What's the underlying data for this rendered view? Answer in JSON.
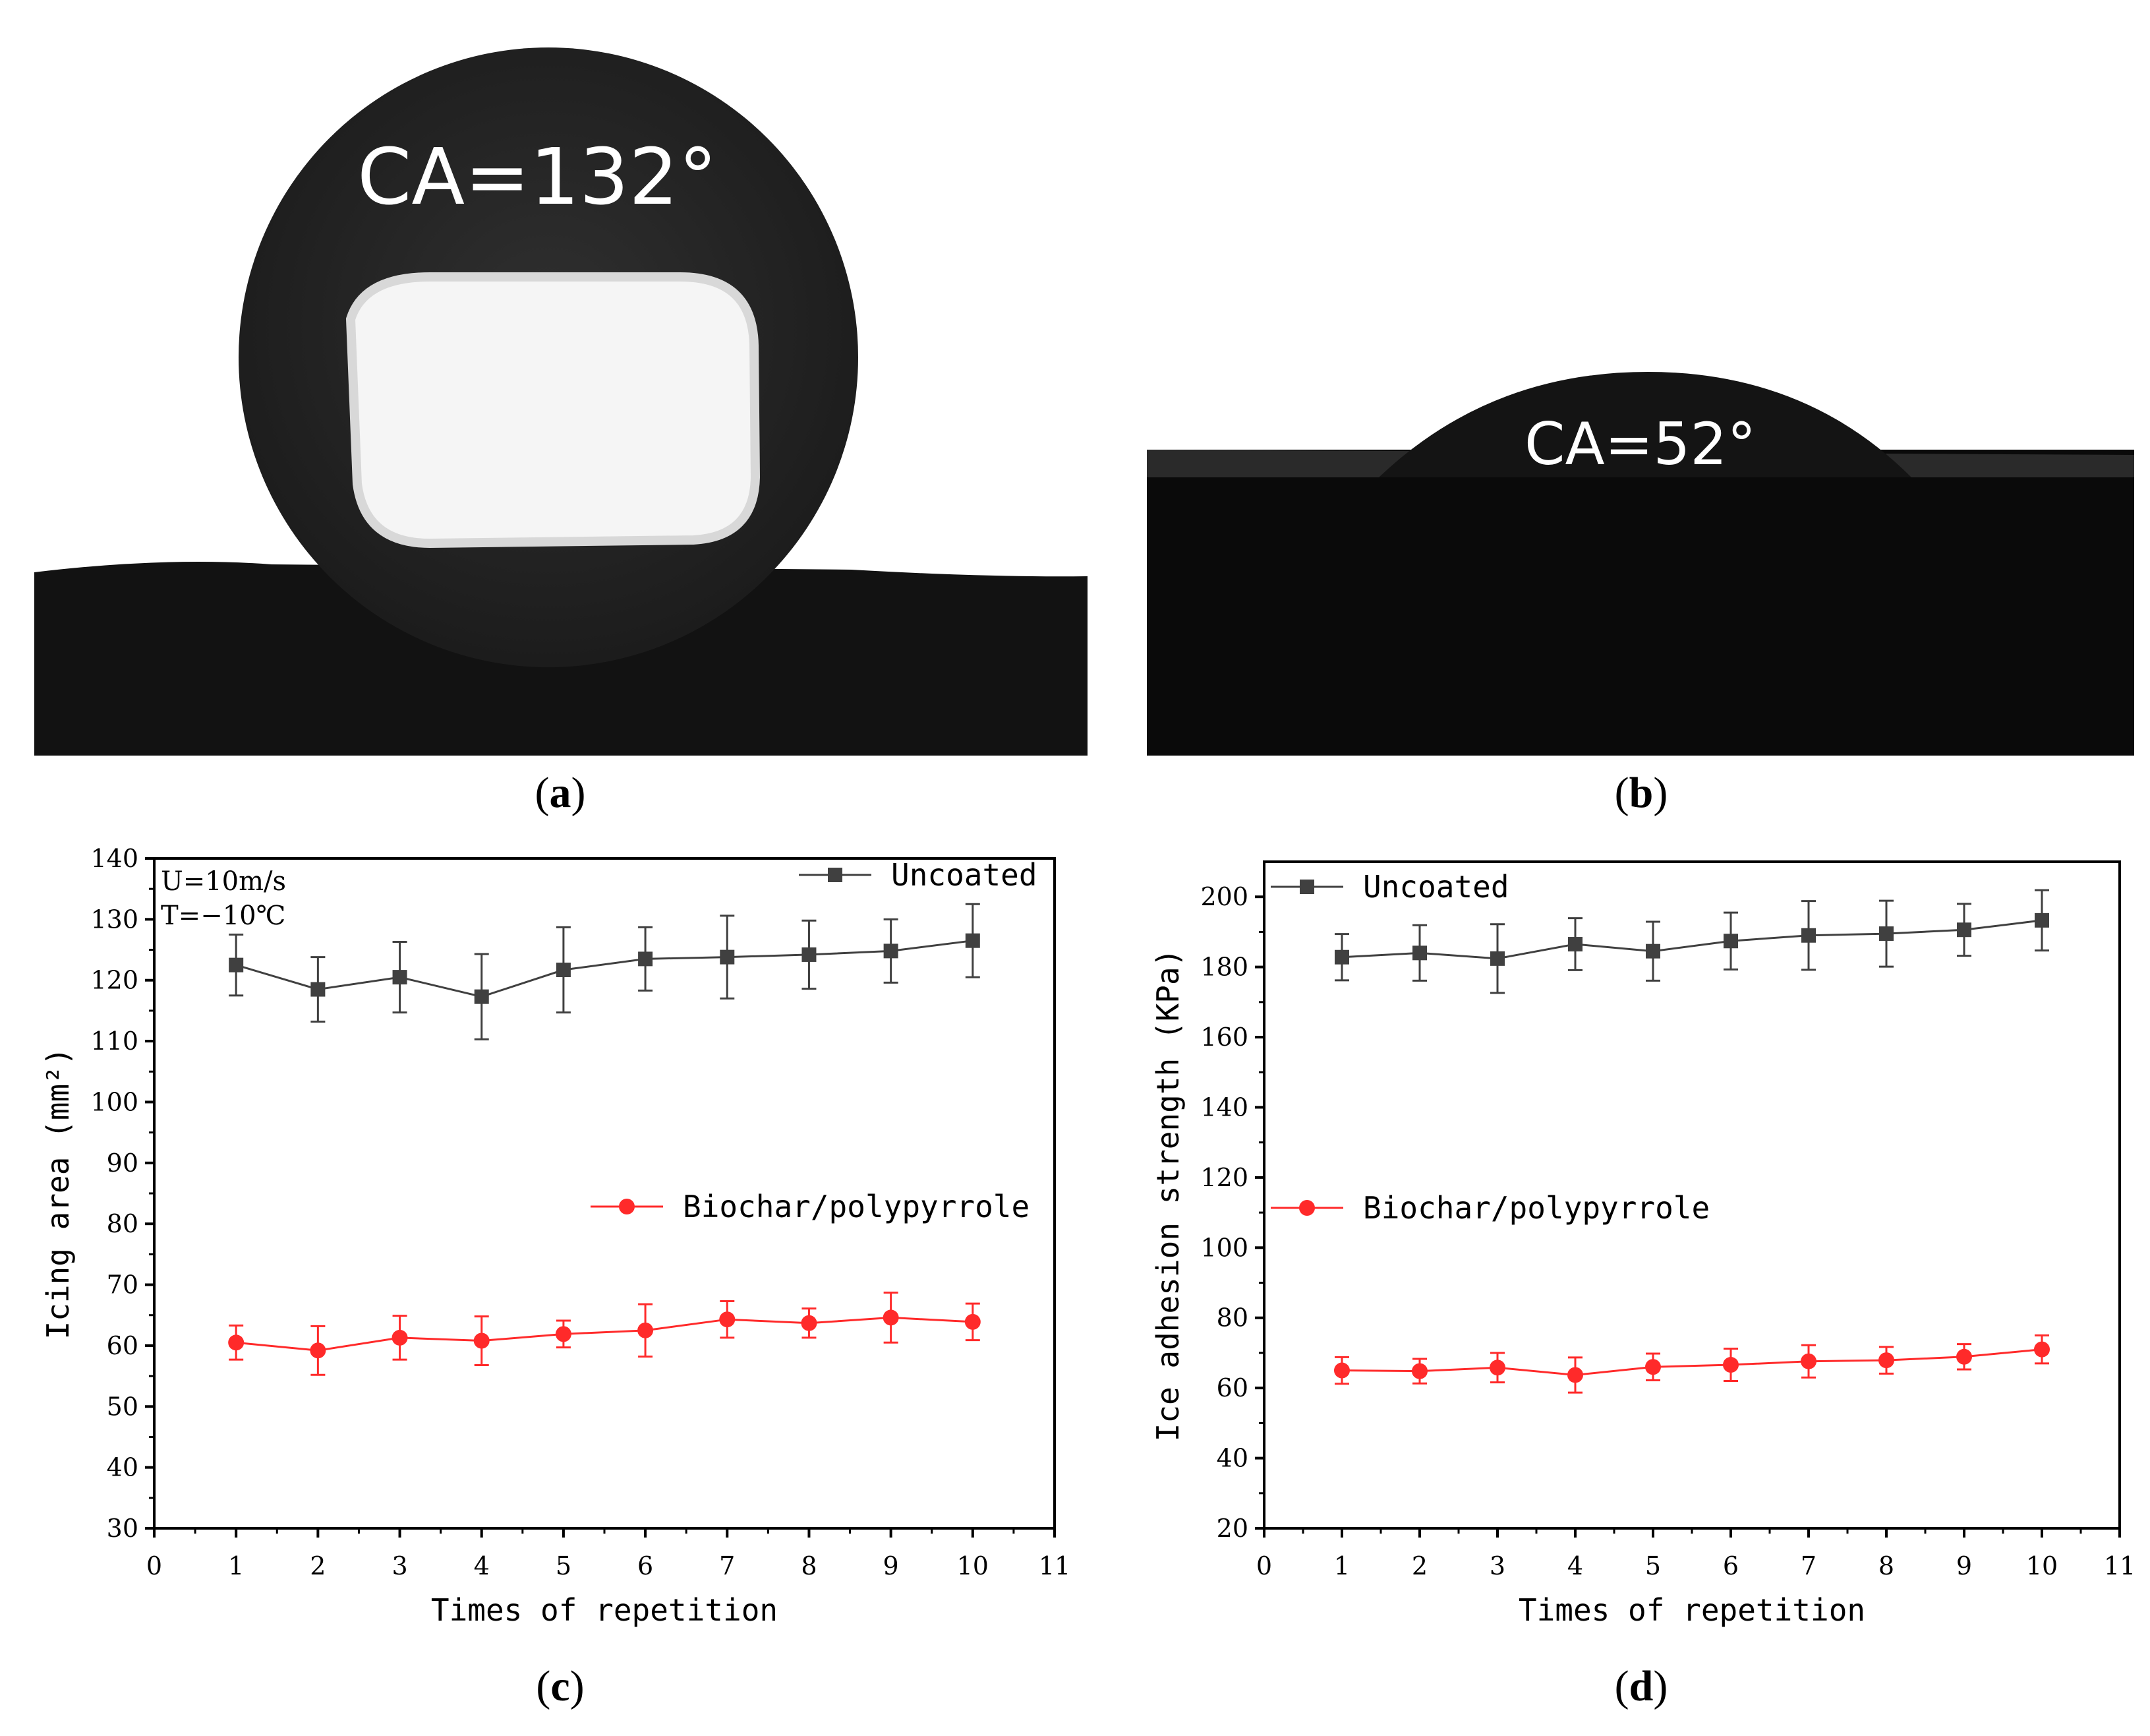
{
  "photos": [
    {
      "id": "a",
      "annotation": "CA=132°",
      "label_open": "(",
      "label_letter": "a",
      "label_close": ")"
    },
    {
      "id": "b",
      "annotation": "CA=52°",
      "label_open": "(",
      "label_letter": "b",
      "label_close": ")"
    }
  ],
  "chart_labels": [
    {
      "open": "(",
      "letter": "c",
      "close": ")"
    },
    {
      "open": "(",
      "letter": "d",
      "close": ")"
    }
  ],
  "chart_data": [
    {
      "type": "line",
      "title": "",
      "xlabel": "Times of repetition",
      "ylabel": "Icing area (mm²)",
      "xlim": [
        0,
        11
      ],
      "ylim": [
        30,
        140
      ],
      "xticks": [
        0,
        1,
        2,
        3,
        4,
        5,
        6,
        7,
        8,
        9,
        10,
        11
      ],
      "yticks": [
        30,
        40,
        50,
        60,
        70,
        80,
        90,
        100,
        110,
        120,
        130,
        140
      ],
      "annotations": [
        "U=10m/s",
        "T=−10℃"
      ],
      "x": [
        1,
        2,
        3,
        4,
        5,
        6,
        7,
        8,
        9,
        10
      ],
      "series": [
        {
          "name": "Uncoated",
          "color": "#404040",
          "marker": "square",
          "values": [
            122.5,
            118.5,
            120.5,
            117.3,
            121.7,
            123.5,
            123.8,
            124.2,
            124.8,
            126.5
          ],
          "errors": [
            5.0,
            5.3,
            5.8,
            7.0,
            7.0,
            5.2,
            6.8,
            5.6,
            5.2,
            6.0
          ]
        },
        {
          "name": "Biochar/polypyrrole",
          "color": "#ff2a2a",
          "marker": "circle",
          "values": [
            60.5,
            59.2,
            61.3,
            60.8,
            61.9,
            62.5,
            64.3,
            63.7,
            64.6,
            63.9
          ],
          "errors": [
            2.8,
            4.0,
            3.6,
            4.0,
            2.2,
            4.3,
            3.0,
            2.4,
            4.1,
            3.0
          ]
        }
      ],
      "legend": "top-right / middle-right"
    },
    {
      "type": "line",
      "title": "",
      "xlabel": "Times of repetition",
      "ylabel": "Ice adhesion strength (KPa)",
      "xlim": [
        0,
        11
      ],
      "ylim": [
        20,
        210
      ],
      "xticks": [
        0,
        1,
        2,
        3,
        4,
        5,
        6,
        7,
        8,
        9,
        10,
        11
      ],
      "yticks": [
        20,
        40,
        60,
        80,
        100,
        120,
        140,
        160,
        180,
        200
      ],
      "x": [
        1,
        2,
        3,
        4,
        5,
        6,
        7,
        8,
        9,
        10
      ],
      "series": [
        {
          "name": "Uncoated",
          "color": "#404040",
          "marker": "square",
          "values": [
            182.8,
            184.0,
            182.4,
            186.5,
            184.5,
            187.4,
            189.0,
            189.5,
            190.6,
            193.3
          ],
          "errors": [
            6.6,
            7.9,
            9.8,
            7.4,
            8.4,
            8.1,
            9.8,
            9.4,
            7.4,
            8.6
          ]
        },
        {
          "name": "Biochar/polypyrrole",
          "color": "#ff2a2a",
          "marker": "circle",
          "values": [
            65.0,
            64.8,
            65.8,
            63.7,
            66.0,
            66.6,
            67.6,
            67.9,
            68.9,
            71.0
          ],
          "errors": [
            3.8,
            3.5,
            4.2,
            5.0,
            3.8,
            4.6,
            4.6,
            3.8,
            3.6,
            4.0
          ]
        }
      ],
      "legend": "top-left / middle-left"
    }
  ]
}
